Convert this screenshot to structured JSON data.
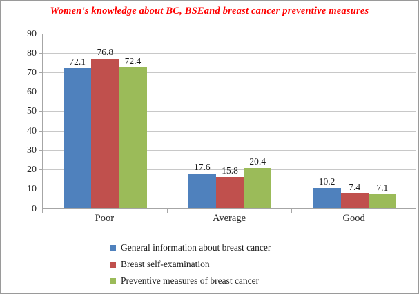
{
  "figure": {
    "background": "#ffffff",
    "border_color": "#9a9a9a"
  },
  "chart_data": {
    "type": "bar",
    "title": "Women's knowledge about BC, BSEand breast cancer preventive measures",
    "title_color": "#ff0000",
    "categories": [
      "Poor",
      "Average",
      "Good"
    ],
    "series": [
      {
        "name": "General information about breast cancer",
        "color": "#4f81bd",
        "values": [
          72.1,
          17.6,
          10.2
        ],
        "labels": [
          "72.1",
          "17.6",
          "10.2"
        ]
      },
      {
        "name": "Breast self-examination",
        "color": "#c0504d",
        "values": [
          76.8,
          15.8,
          7.4
        ],
        "labels": [
          "76.8",
          "15.8",
          "7.4"
        ]
      },
      {
        "name": "Preventive measures of breast cancer",
        "color": "#9bbb59",
        "values": [
          72.4,
          20.4,
          7.1
        ],
        "labels": [
          "72.4",
          "20.4",
          "7.1"
        ]
      }
    ],
    "y_axis": {
      "min": 0,
      "max": 90,
      "step": 10,
      "tick_labels": [
        "0",
        "10",
        "20",
        "30",
        "40",
        "50",
        "60",
        "70",
        "80",
        "90"
      ]
    },
    "xlabel": "",
    "ylabel": "",
    "grid": true,
    "legend_position": "bottom-left",
    "colors": {
      "gridline": "#c8c8c8",
      "axis": "#a6a6a6",
      "tick_text": "#262626",
      "data_label": "#1a1a1a",
      "legend_text": "#1a1a1a"
    }
  }
}
